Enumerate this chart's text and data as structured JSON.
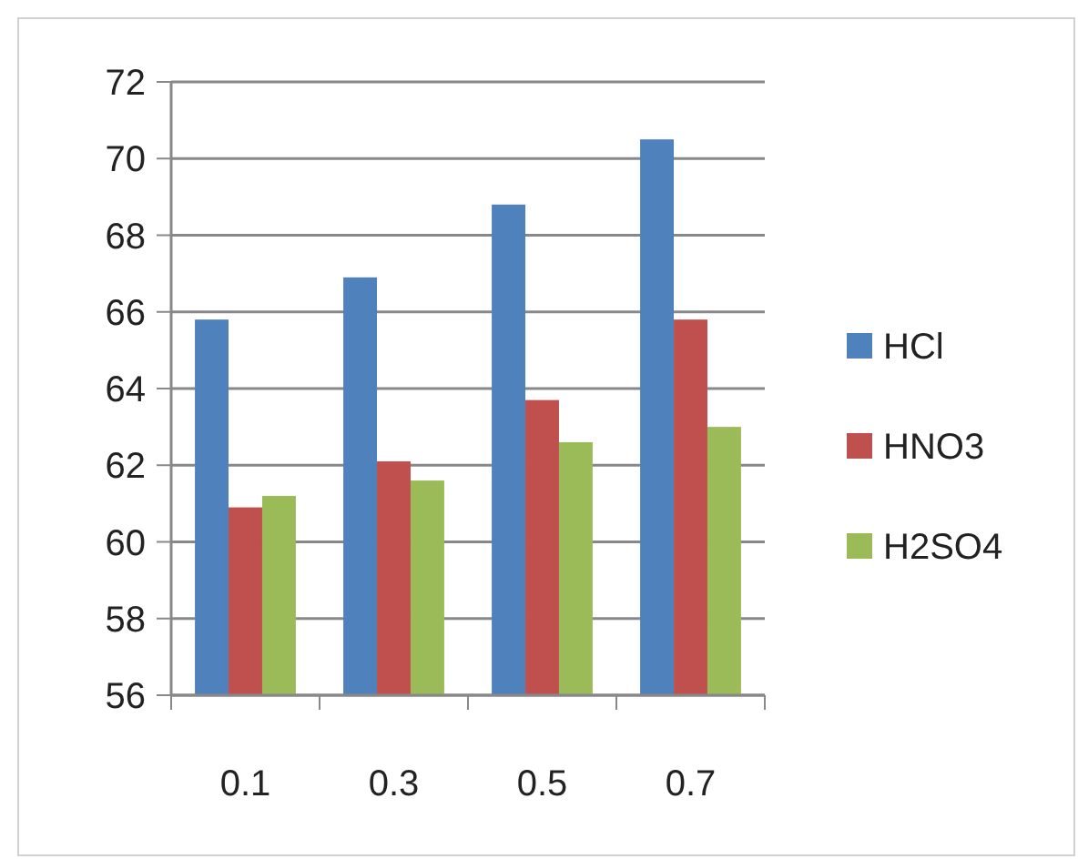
{
  "chart_data": {
    "type": "bar",
    "categories": [
      "0.1",
      "0.3",
      "0.5",
      "0.7"
    ],
    "series": [
      {
        "name": "HCl",
        "color": "#4f81bd",
        "values": [
          65.8,
          66.9,
          68.8,
          70.5
        ]
      },
      {
        "name": "HNO3",
        "color": "#c0504d",
        "values": [
          60.9,
          62.1,
          63.7,
          65.8
        ]
      },
      {
        "name": "H2SO4",
        "color": "#9bbb59",
        "values": [
          61.2,
          61.6,
          62.6,
          63.0
        ]
      }
    ],
    "ylim": [
      56,
      72
    ],
    "yticks": [
      56,
      58,
      60,
      62,
      64,
      66,
      68,
      70,
      72
    ],
    "grid": "y",
    "legend": "right"
  }
}
